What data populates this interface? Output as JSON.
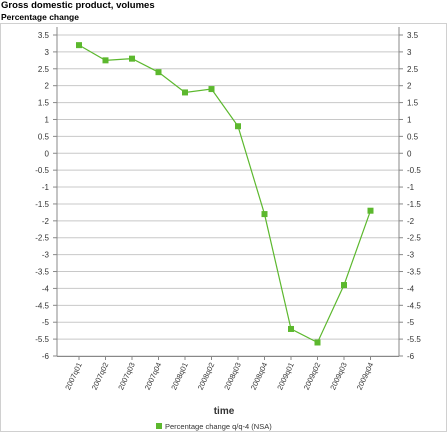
{
  "chart_data": {
    "type": "line",
    "title": "Gross domestic product, volumes",
    "subtitle": "Percentage change",
    "xlabel": "time",
    "ylabel": "",
    "categories": [
      "2007q01",
      "2007q02",
      "2007q03",
      "2007q04",
      "2008q01",
      "2008q02",
      "2008q03",
      "2008q04",
      "2009q01",
      "2009q02",
      "2009q03",
      "2009q04"
    ],
    "series": [
      {
        "name": "Percentage change q/q-4 (NSA)",
        "values": [
          3.2,
          2.75,
          2.8,
          2.4,
          1.8,
          1.9,
          0.8,
          -1.8,
          -5.2,
          -5.6,
          -3.9,
          -1.7
        ]
      }
    ],
    "ylim": [
      -6,
      3.5
    ],
    "yticks": [
      "3.5",
      "3",
      "2.5",
      "2",
      "1.5",
      "1",
      "0.5",
      "0",
      "-0.5",
      "-1",
      "-1.5",
      "-2",
      "-2.5",
      "-3",
      "-3.5",
      "-4",
      "-4.5",
      "-5",
      "-5.5",
      "-6"
    ],
    "yaxis_both_sides": true,
    "grid": "horizontal",
    "legend": "bottom-center",
    "colors": {
      "series": "#5cb82e",
      "grid": "#c8c8c8",
      "axis": "#888888",
      "frame": "#d0d0d0"
    }
  }
}
